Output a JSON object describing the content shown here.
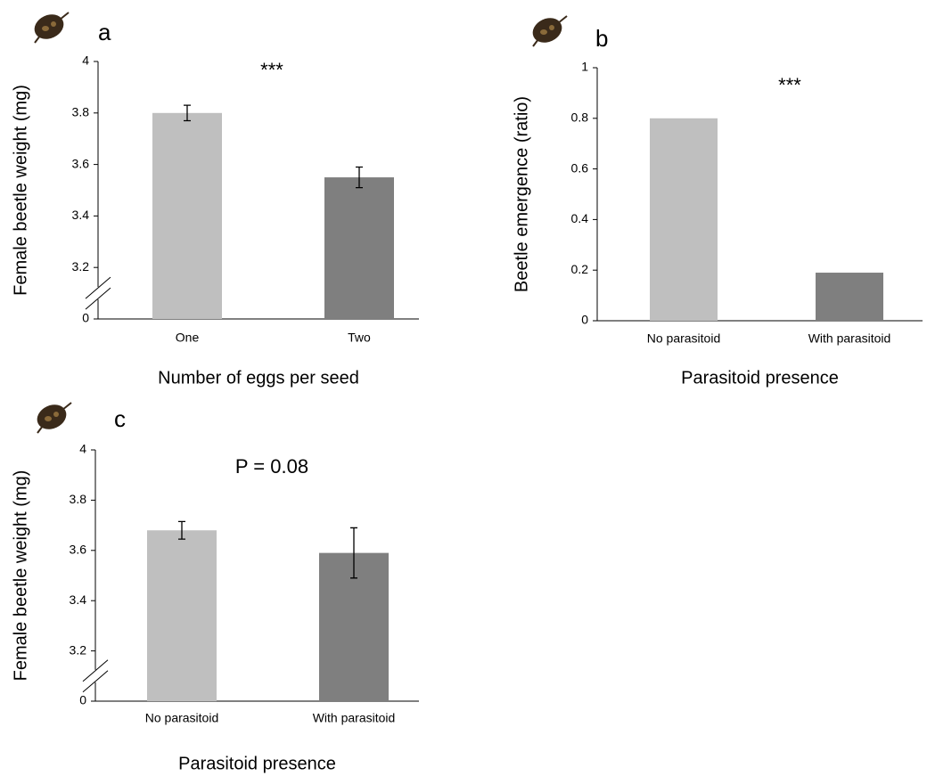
{
  "chart_data": [
    {
      "type": "bar",
      "panel_label": "a",
      "annotation": "***",
      "x_label": "Number of eggs per seed",
      "y_label": "Female beetle weight (mg)",
      "categories": [
        "One",
        "Two"
      ],
      "values": [
        3.8,
        3.55
      ],
      "errors": [
        0.03,
        0.04
      ],
      "colors": [
        "#bfbfbf",
        "#7f7f7f"
      ],
      "ylim": [
        0,
        4
      ],
      "yticks": [
        0,
        3.2,
        3.4,
        3.6,
        3.8,
        4
      ],
      "axis_break": true
    },
    {
      "type": "bar",
      "panel_label": "b",
      "annotation": "***",
      "x_label": "Parasitoid presence",
      "y_label": "Beetle emergence (ratio)",
      "categories": [
        "No parasitoid",
        "With parasitoid"
      ],
      "values": [
        0.8,
        0.19
      ],
      "colors": [
        "#bfbfbf",
        "#7f7f7f"
      ],
      "ylim": [
        0,
        1
      ],
      "yticks": [
        0,
        0.2,
        0.4,
        0.6,
        0.8,
        1
      ],
      "axis_break": false
    },
    {
      "type": "bar",
      "panel_label": "c",
      "annotation": "P = 0.08",
      "x_label": "Parasitoid presence",
      "y_label": "Female beetle weight (mg)",
      "categories": [
        "No parasitoid",
        "With parasitoid"
      ],
      "values": [
        3.68,
        3.59
      ],
      "errors": [
        0.035,
        0.1
      ],
      "colors": [
        "#bfbfbf",
        "#7f7f7f"
      ],
      "ylim": [
        0,
        4
      ],
      "yticks": [
        0,
        3.2,
        3.4,
        3.6,
        3.8,
        4
      ],
      "axis_break": true
    }
  ]
}
